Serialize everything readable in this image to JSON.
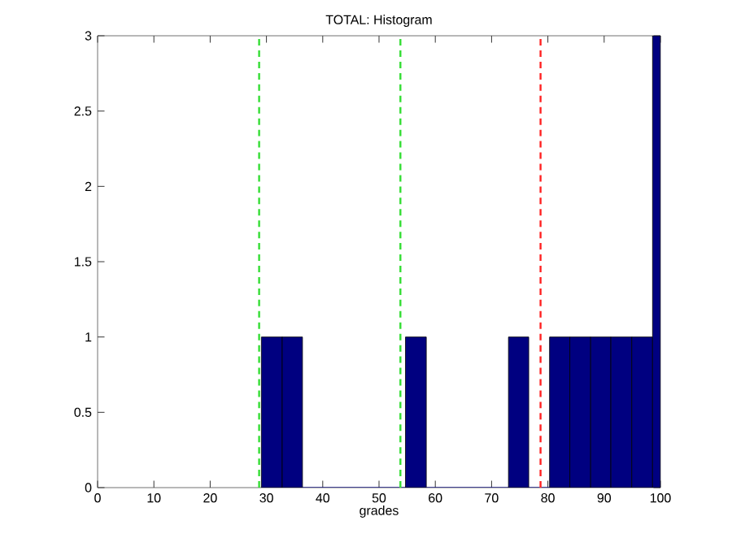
{
  "chart_data": {
    "type": "histogram",
    "title": "TOTAL: Histogram",
    "xlabel": "grades",
    "bins": [
      29.1,
      32.8,
      36.4,
      54.7,
      58.4,
      73.0,
      76.6,
      80.3,
      83.9,
      87.6,
      91.2,
      94.9,
      98.6,
      100
    ],
    "values": [
      1,
      1,
      0,
      1,
      0,
      1,
      0,
      1,
      1,
      1,
      1,
      1,
      3
    ],
    "color": "#000080",
    "xlim": [
      0,
      100
    ],
    "xticks": [
      0,
      10,
      20,
      30,
      40,
      50,
      60,
      70,
      80,
      90,
      100
    ],
    "ylim": [
      0,
      3
    ],
    "yticks": [
      0,
      0.5,
      1,
      1.5,
      2,
      2.5,
      3
    ],
    "ref_lines": [
      {
        "axis": "x",
        "value": 28.7,
        "color": "#33dd33",
        "line_style": "dashed"
      },
      {
        "axis": "x",
        "value": 53.8,
        "color": "#33dd33",
        "line_style": "dashed"
      },
      {
        "axis": "x",
        "value": 78.7,
        "color": "#ff2222",
        "line_style": "dashed"
      }
    ],
    "grid": false
  }
}
